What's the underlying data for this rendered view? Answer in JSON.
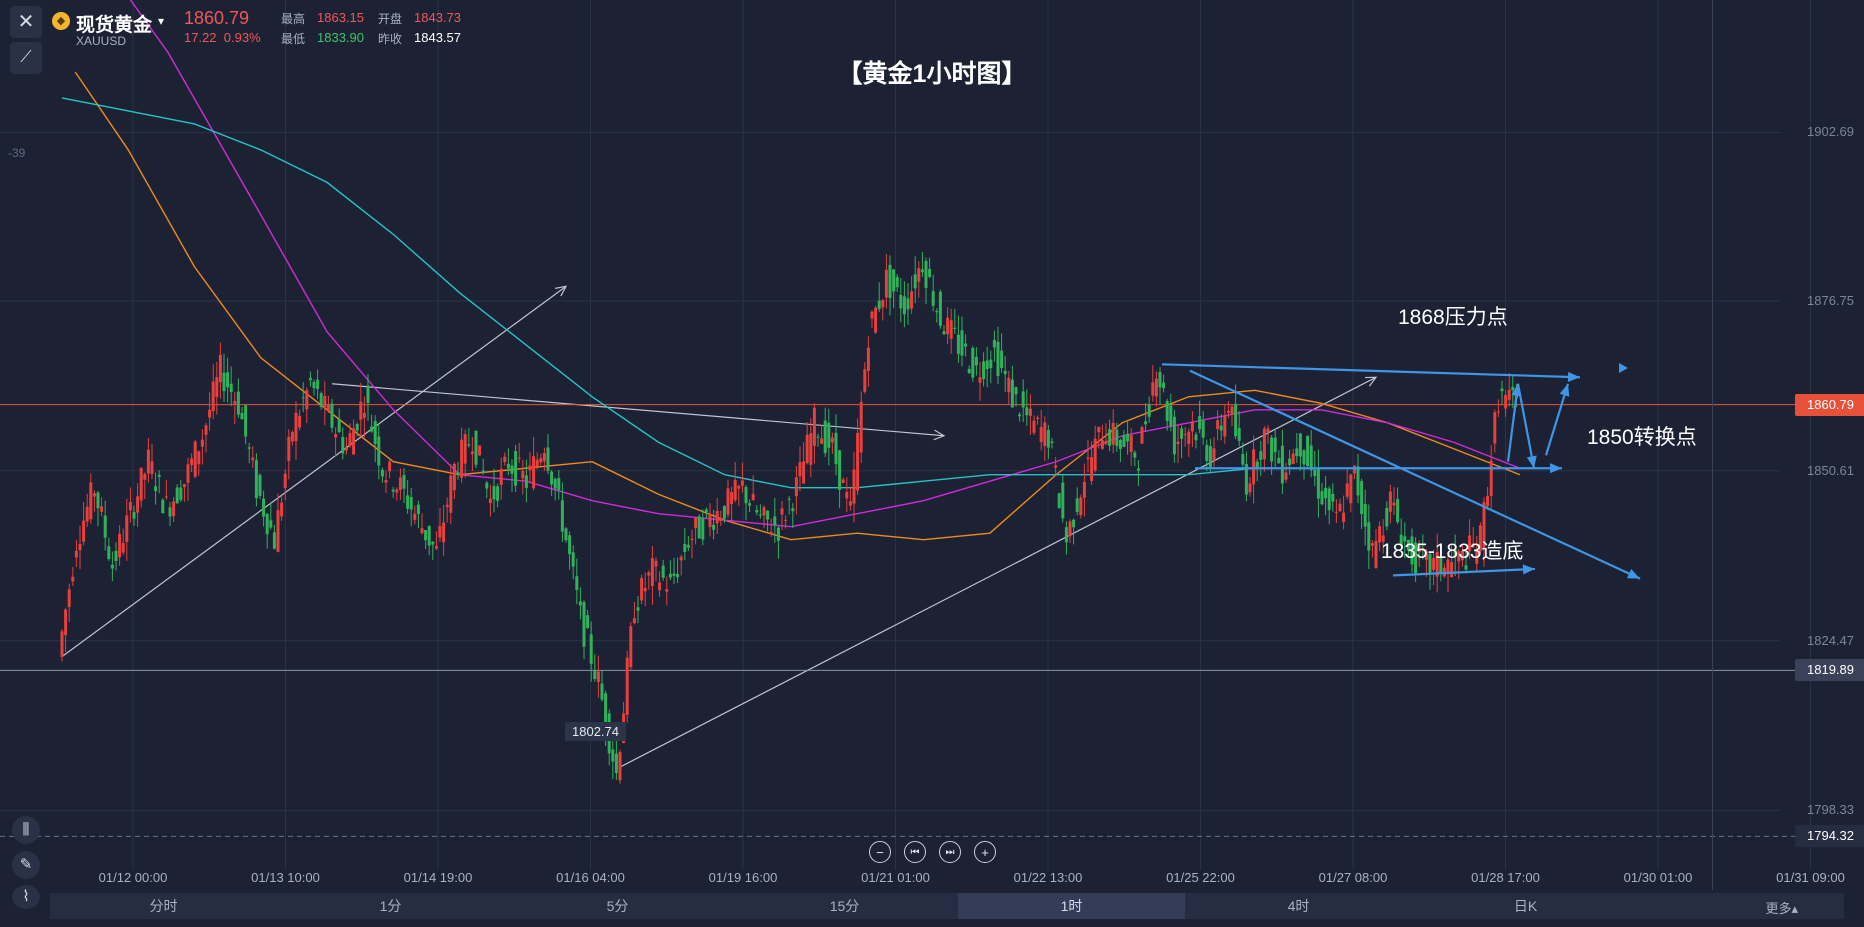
{
  "header": {
    "symbol_name": "现货黄金",
    "symbol_code": "XAUUSD",
    "last_price": "1860.79",
    "change": "17.22",
    "change_pct": "0.93%",
    "high_label": "最高",
    "high": "1863.15",
    "open_label": "开盘",
    "open": "1843.73",
    "low_label": "最低",
    "low": "1833.90",
    "prev_close_label": "昨收",
    "prev_close": "1843.57",
    "coin_glyph": "◆",
    "left_stub": "-39"
  },
  "chart_data": {
    "type": "candlestick",
    "title": "【黄金1小时图】",
    "x_tick_labels": [
      "01/12 00:00",
      "01/13 10:00",
      "01/14 19:00",
      "01/16 04:00",
      "01/19 16:00",
      "01/21 01:00",
      "01/22 13:00",
      "01/25 22:00",
      "01/27 08:00",
      "01/28 17:00",
      "01/30 01:00",
      "01/31 09:00"
    ],
    "y_tick_labels": [
      "1902.69",
      "1876.75",
      "1850.61",
      "1824.47",
      "1798.33"
    ],
    "ylim": [
      1791,
      1920
    ],
    "grid": true,
    "ohlc_path_closes": [
      1822,
      1840,
      1848,
      1836,
      1844,
      1852,
      1845,
      1849,
      1856,
      1866,
      1861,
      1848,
      1840,
      1857,
      1864,
      1859,
      1854,
      1862,
      1851,
      1848,
      1843,
      1838,
      1851,
      1856,
      1846,
      1852,
      1849,
      1855,
      1843,
      1828,
      1818,
      1804,
      1830,
      1835,
      1833,
      1840,
      1843,
      1845,
      1848,
      1843,
      1842,
      1848,
      1858,
      1854,
      1844,
      1872,
      1880,
      1876,
      1883,
      1874,
      1870,
      1866,
      1869,
      1862,
      1858,
      1856,
      1840,
      1850,
      1857,
      1855,
      1853,
      1867,
      1855,
      1858,
      1853,
      1861,
      1849,
      1856,
      1851,
      1855,
      1848,
      1843,
      1850,
      1838,
      1846,
      1838,
      1836,
      1836,
      1837,
      1840,
      1862,
      1860.79
    ],
    "moving_averages": [
      {
        "color": "#f08a1c",
        "points": [
          [
            1,
            1912
          ],
          [
            5,
            1900
          ],
          [
            10,
            1882
          ],
          [
            15,
            1868
          ],
          [
            20,
            1860
          ],
          [
            25,
            1852
          ],
          [
            30,
            1850
          ],
          [
            35,
            1851
          ],
          [
            40,
            1852
          ],
          [
            45,
            1847
          ],
          [
            50,
            1843
          ],
          [
            55,
            1840
          ],
          [
            60,
            1841
          ],
          [
            65,
            1840
          ],
          [
            70,
            1841
          ],
          [
            75,
            1850
          ],
          [
            80,
            1858
          ],
          [
            85,
            1862
          ],
          [
            90,
            1863
          ],
          [
            95,
            1861
          ],
          [
            100,
            1858
          ],
          [
            105,
            1854
          ],
          [
            110,
            1850
          ]
        ]
      },
      {
        "color": "#d12ad8",
        "points": [
          [
            1,
            1935
          ],
          [
            8,
            1915
          ],
          [
            15,
            1890
          ],
          [
            20,
            1872
          ],
          [
            25,
            1860
          ],
          [
            30,
            1850
          ],
          [
            35,
            1849
          ],
          [
            40,
            1846
          ],
          [
            45,
            1844
          ],
          [
            50,
            1843
          ],
          [
            55,
            1842
          ],
          [
            60,
            1844
          ],
          [
            65,
            1846
          ],
          [
            70,
            1849
          ],
          [
            75,
            1852
          ],
          [
            80,
            1856
          ],
          [
            85,
            1858
          ],
          [
            90,
            1860
          ],
          [
            95,
            1860
          ],
          [
            100,
            1858
          ],
          [
            105,
            1855
          ],
          [
            110,
            1851
          ]
        ]
      },
      {
        "color": "#25c3c7",
        "points": [
          [
            0,
            1908
          ],
          [
            5,
            1906
          ],
          [
            10,
            1904
          ],
          [
            15,
            1900
          ],
          [
            20,
            1895
          ],
          [
            25,
            1887
          ],
          [
            30,
            1878
          ],
          [
            35,
            1870
          ],
          [
            40,
            1862
          ],
          [
            45,
            1855
          ],
          [
            50,
            1850
          ],
          [
            55,
            1848
          ],
          [
            60,
            1848
          ],
          [
            65,
            1849
          ],
          [
            70,
            1850
          ],
          [
            75,
            1850
          ],
          [
            80,
            1850
          ],
          [
            85,
            1850
          ],
          [
            90,
            1851
          ],
          [
            95,
            1851
          ],
          [
            100,
            1851
          ],
          [
            105,
            1851
          ],
          [
            110,
            1851
          ]
        ]
      }
    ],
    "horizontal_levels": [
      {
        "value": 1860.79,
        "label": "1860.79",
        "color": "#e8503a"
      },
      {
        "value": 1819.89,
        "label": "1819.89",
        "color": "#8c93a6"
      },
      {
        "value": 1794.32,
        "label": "1794.32",
        "color": "#6a7186",
        "dashed": true
      }
    ],
    "low_marker": {
      "label": "1802.74",
      "value": 1802.74
    },
    "annotations": [
      {
        "text": "1868压力点"
      },
      {
        "text": "1850转换点"
      },
      {
        "text": "1835-1833造底"
      }
    ]
  },
  "periods": [
    "分时",
    "1分",
    "5分",
    "15分",
    "1时",
    "4时",
    "日K"
  ],
  "active_period": "1时",
  "more_label": "更多▴",
  "nav": [
    "−",
    "⏮",
    "⏭",
    "+"
  ],
  "tools": {
    "close": "✕",
    "draw": "⟋",
    "candles": "⫼",
    "pen": "✎",
    "indicator": "⌇"
  }
}
